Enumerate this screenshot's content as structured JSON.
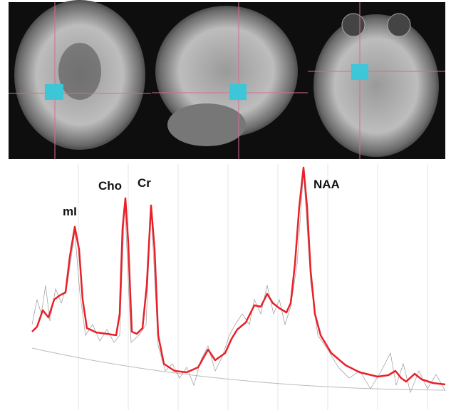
{
  "peaks": [
    {
      "label": "mI"
    },
    {
      "label": "Cho"
    },
    {
      "label": "Cr"
    },
    {
      "label": "NAA"
    }
  ]
}
